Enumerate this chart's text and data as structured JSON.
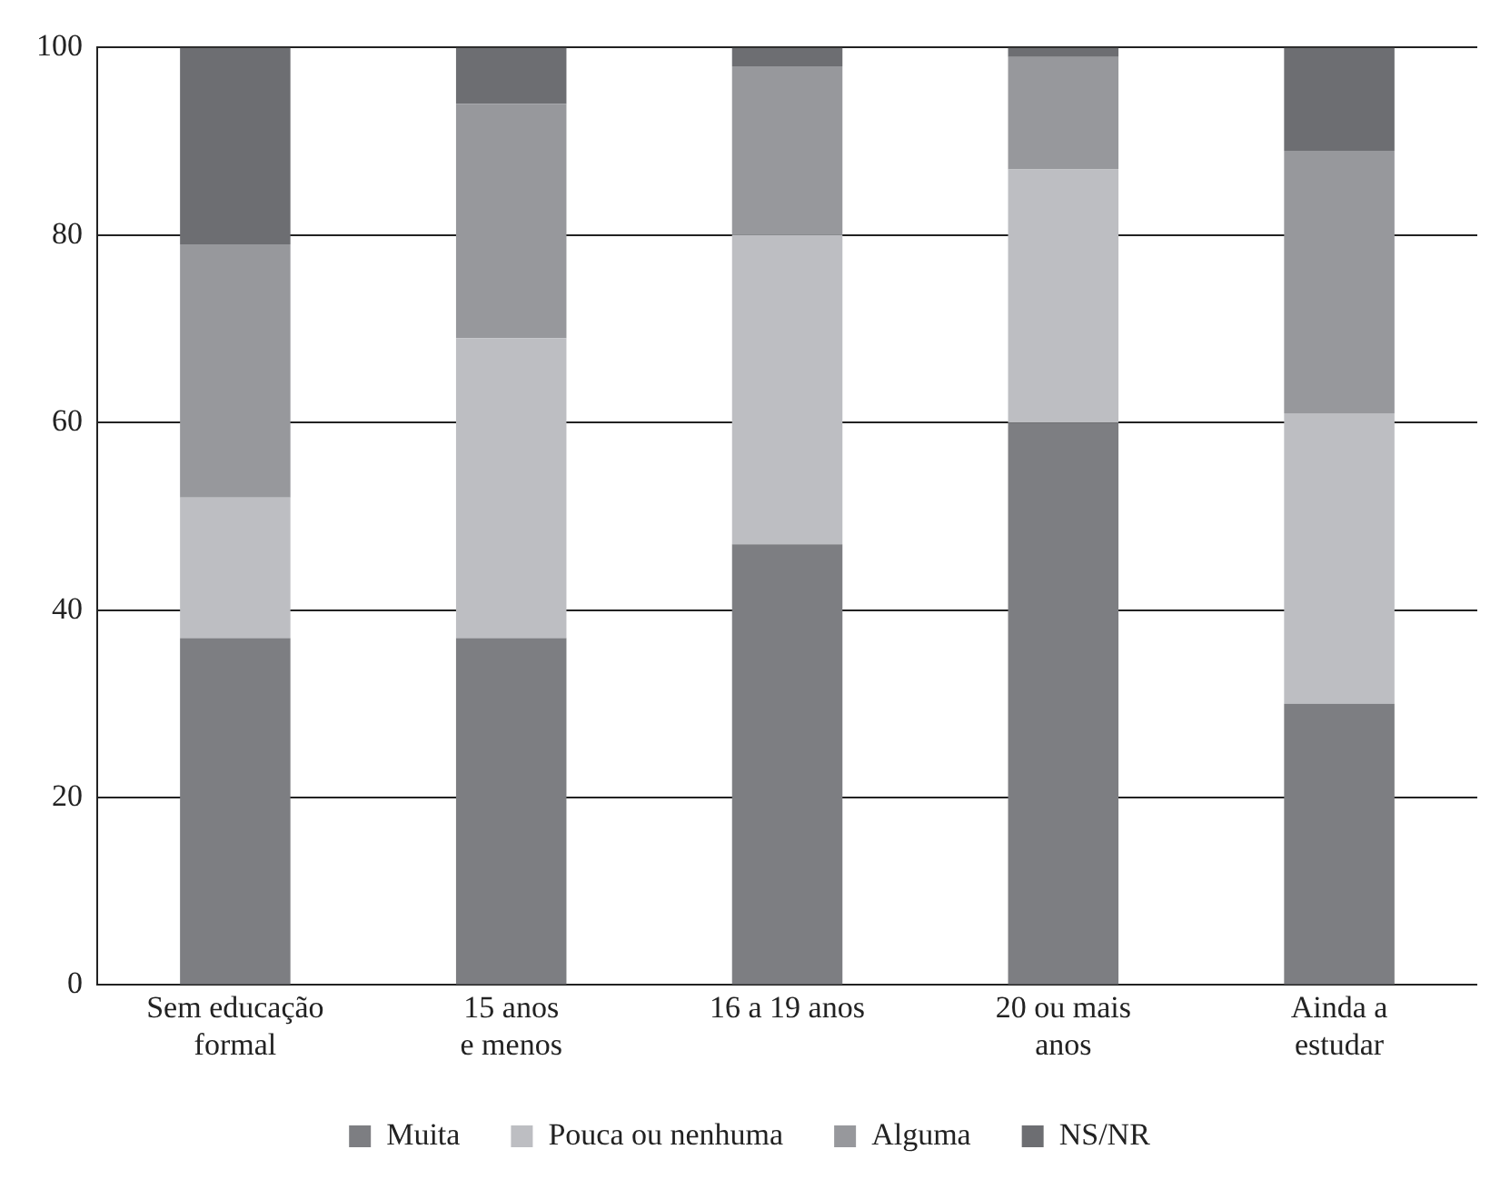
{
  "chart_data": {
    "type": "bar",
    "stacked": true,
    "categories": [
      "Sem educação\nformal",
      "15 anos\ne menos",
      "16 a 19 anos",
      "20 ou mais\nanos",
      "Ainda a\nestudar"
    ],
    "series": [
      {
        "name": "Muita",
        "color": "#7d7e82",
        "values": [
          37,
          37,
          47,
          60,
          30
        ]
      },
      {
        "name": "Pouca ou nenhuma",
        "color": "#bdbec2",
        "values": [
          15,
          32,
          33,
          27,
          31
        ]
      },
      {
        "name": "Alguma",
        "color": "#97989c",
        "values": [
          27,
          25,
          18,
          12,
          28
        ]
      },
      {
        "name": "NS/NR",
        "color": "#6d6e72",
        "values": [
          21,
          6,
          2,
          1,
          11
        ]
      }
    ],
    "ylim": [
      0,
      100
    ],
    "yticks": [
      0,
      20,
      40,
      60,
      80,
      100
    ],
    "grid": "y",
    "legend": "bottom"
  }
}
